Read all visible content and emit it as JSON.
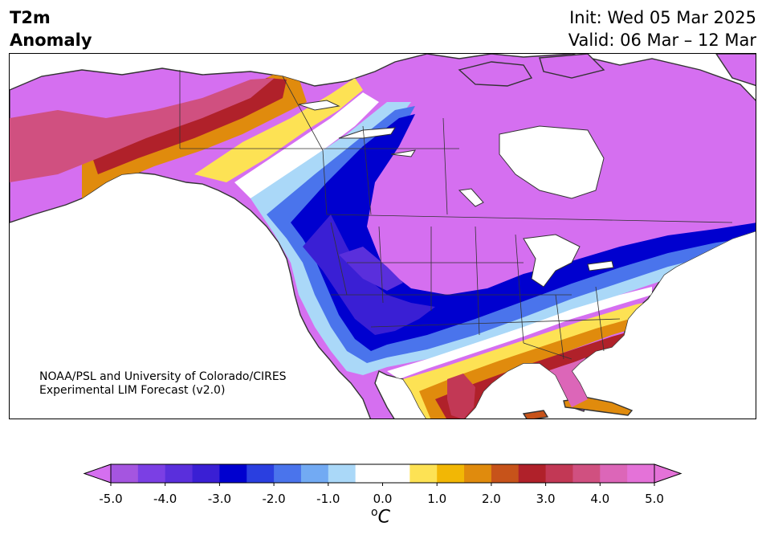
{
  "header": {
    "title_line1": "T2m",
    "title_line2": "Anomaly",
    "init_text": "Init: Wed 05 Mar 2025",
    "valid_text": "Valid: 06 Mar – 12 Mar"
  },
  "credit": {
    "line1": "NOAA/PSL and University of Colorado/CIRES",
    "line2": "Experimental LIM Forecast (v2.0)"
  },
  "colorbar": {
    "unit_sup": "o",
    "unit_main": "C",
    "tick_labels": [
      "-5.0",
      "-4.0",
      "-3.0",
      "-2.0",
      "-1.0",
      "0.0",
      "1.0",
      "2.0",
      "3.0",
      "4.0",
      "5.0"
    ],
    "bins": [
      {
        "lower": -5.0,
        "upper": -4.5,
        "color": "#a555e0"
      },
      {
        "lower": -4.5,
        "upper": -4.0,
        "color": "#7b3fe4"
      },
      {
        "lower": -4.0,
        "upper": -3.5,
        "color": "#5a2fdc"
      },
      {
        "lower": -3.5,
        "upper": -3.0,
        "color": "#3a1fd4"
      },
      {
        "lower": -3.0,
        "upper": -2.5,
        "color": "#0000cf"
      },
      {
        "lower": -2.5,
        "upper": -2.0,
        "color": "#2a3fe0"
      },
      {
        "lower": -2.0,
        "upper": -1.5,
        "color": "#4a74ec"
      },
      {
        "lower": -1.5,
        "upper": -1.0,
        "color": "#72aaf3"
      },
      {
        "lower": -1.0,
        "upper": -0.5,
        "color": "#aad8f8"
      },
      {
        "lower": -0.5,
        "upper": 0.5,
        "color": "#ffffff"
      },
      {
        "lower": 0.5,
        "upper": 1.0,
        "color": "#fde254"
      },
      {
        "lower": 1.0,
        "upper": 1.5,
        "color": "#f2b705"
      },
      {
        "lower": 1.5,
        "upper": 2.0,
        "color": "#e08b0d"
      },
      {
        "lower": 2.0,
        "upper": 2.5,
        "color": "#c7531a"
      },
      {
        "lower": 2.5,
        "upper": 3.0,
        "color": "#b0212a"
      },
      {
        "lower": 3.0,
        "upper": 3.5,
        "color": "#c23855"
      },
      {
        "lower": 3.5,
        "upper": 4.0,
        "color": "#d05080"
      },
      {
        "lower": 4.0,
        "upper": 4.5,
        "color": "#dc66b8"
      },
      {
        "lower": 4.5,
        "upper": 5.0,
        "color": "#e472d8"
      }
    ],
    "extend_low_color": "#d56ff0",
    "extend_high_color": "#e472d8"
  },
  "map_colors": {
    "land_default": "#d56ff0",
    "water": "#ffffff",
    "coastline": "#333333"
  }
}
